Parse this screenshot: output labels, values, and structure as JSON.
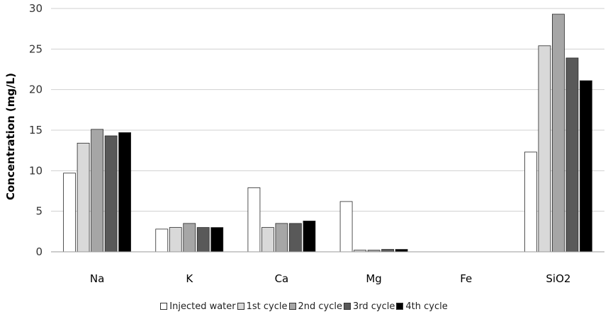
{
  "chart_data": {
    "type": "bar",
    "ylabel": "Concentration (mg/L)",
    "xlabel": "",
    "ylim": [
      0,
      30
    ],
    "yticks": [
      0,
      5,
      10,
      15,
      20,
      25,
      30
    ],
    "grid": true,
    "legend_position": "bottom",
    "categories": [
      "Na",
      "K",
      "Ca",
      "Mg",
      "Fe",
      "SiO2"
    ],
    "series": [
      {
        "name": "Injected water",
        "color": "#ffffff",
        "values": [
          9.7,
          2.8,
          7.9,
          6.2,
          0,
          12.3
        ]
      },
      {
        "name": "1st cycle",
        "color": "#d9d9d9",
        "values": [
          13.4,
          3.0,
          3.0,
          0.2,
          0,
          25.4
        ]
      },
      {
        "name": "2nd cycle",
        "color": "#a6a6a6",
        "values": [
          15.1,
          3.5,
          3.5,
          0.2,
          0,
          29.3
        ]
      },
      {
        "name": "3rd cycle",
        "color": "#595959",
        "values": [
          14.3,
          3.0,
          3.5,
          0.3,
          0,
          23.9
        ]
      },
      {
        "name": "4th cycle",
        "color": "#000000",
        "values": [
          14.7,
          3.0,
          3.8,
          0.3,
          0,
          21.1
        ]
      }
    ]
  }
}
